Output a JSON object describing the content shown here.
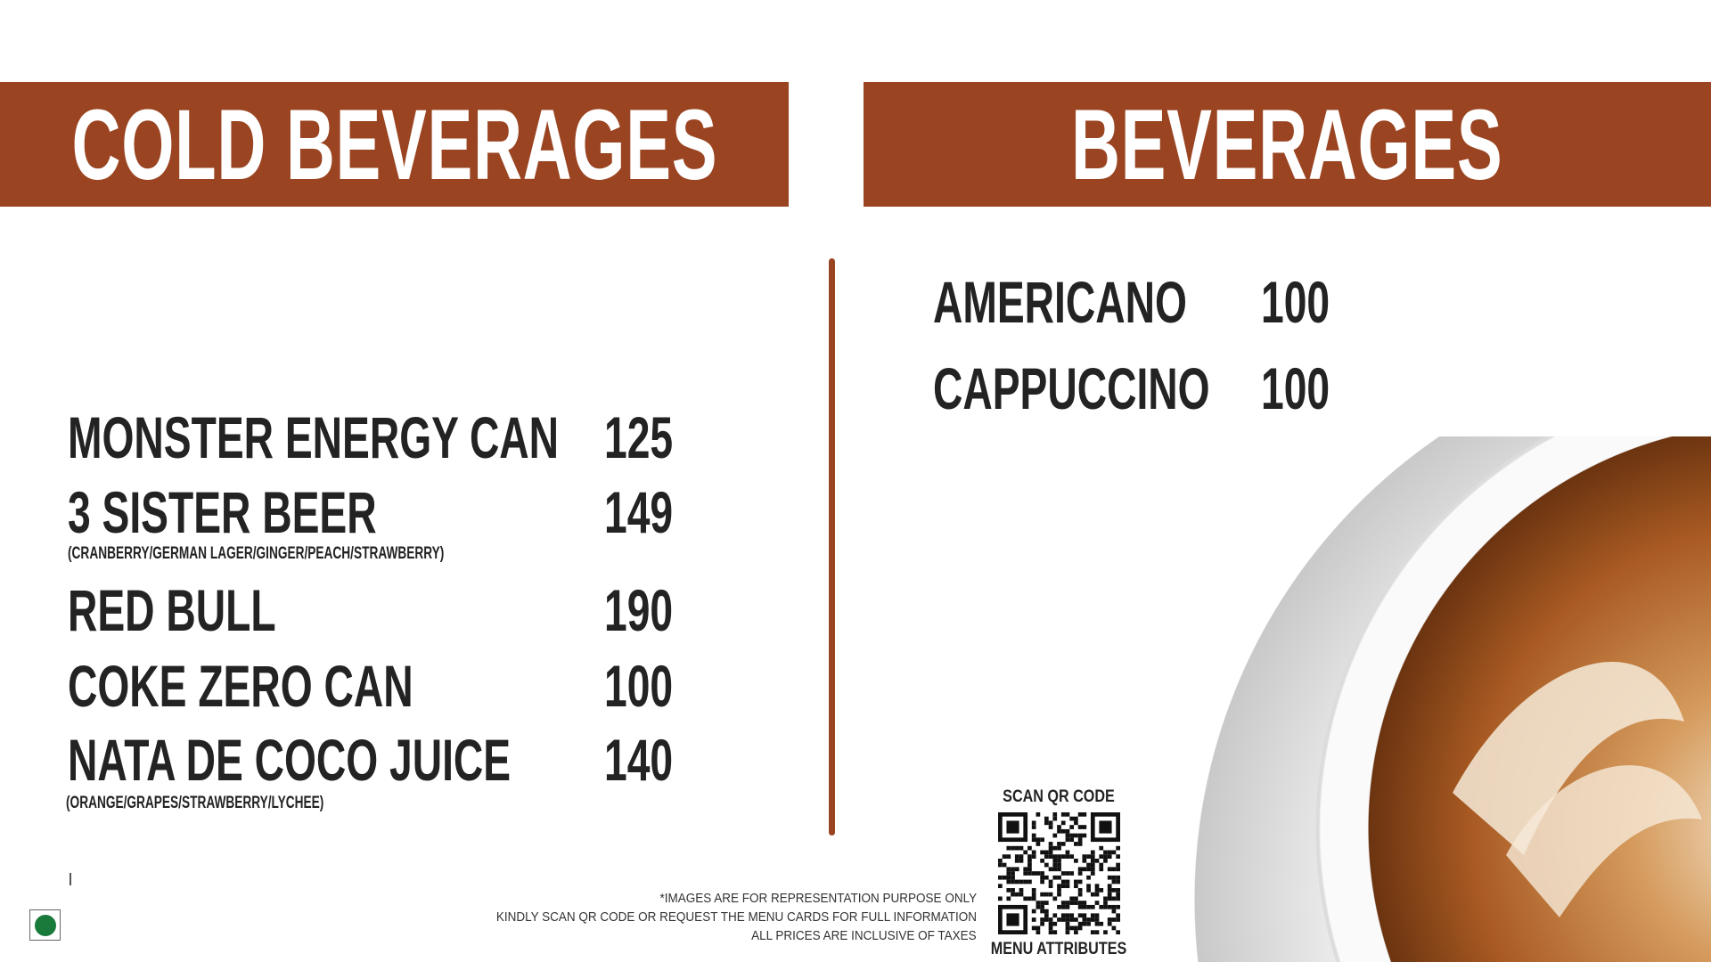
{
  "left_section": {
    "title": "COLD BEVERAGES",
    "items": [
      {
        "name": "MONSTER ENERGY CAN",
        "price": "125",
        "note": ""
      },
      {
        "name": "3 SISTER BEER",
        "price": "149",
        "note": "(CRANBERRY/GERMAN LAGER/GINGER/PEACH/STRAWBERRY)"
      },
      {
        "name": "RED BULL",
        "price": "190",
        "note": ""
      },
      {
        "name": "COKE ZERO CAN",
        "price": "100",
        "note": ""
      },
      {
        "name": "NATA DE COCO JUICE",
        "price": "140",
        "note": "(ORANGE/GRAPES/STRAWBERRY/LYCHEE)"
      }
    ]
  },
  "right_section": {
    "title": "BEVERAGES",
    "items": [
      {
        "name": "AMERICANO",
        "price": "100"
      },
      {
        "name": "CAPPUCCINO",
        "price": "100"
      }
    ]
  },
  "footer": {
    "line1": "*IMAGES ARE FOR REPRESENTATION PURPOSE ONLY",
    "line2": "KINDLY SCAN QR CODE OR REQUEST THE MENU CARDS FOR FULL INFORMATION",
    "line3": "ALL PRICES ARE INCLUSIVE OF TAXES"
  },
  "qr": {
    "top_label": "SCAN QR CODE",
    "bottom_label": "MENU ATTRIBUTES"
  },
  "colors": {
    "accent": "#9a4421",
    "text": "#232323",
    "veg": "#1a7a3c"
  },
  "icons": {
    "veg": "veg-symbol-icon",
    "image": "cappuccino-cup-image",
    "qr": "qr-code"
  }
}
